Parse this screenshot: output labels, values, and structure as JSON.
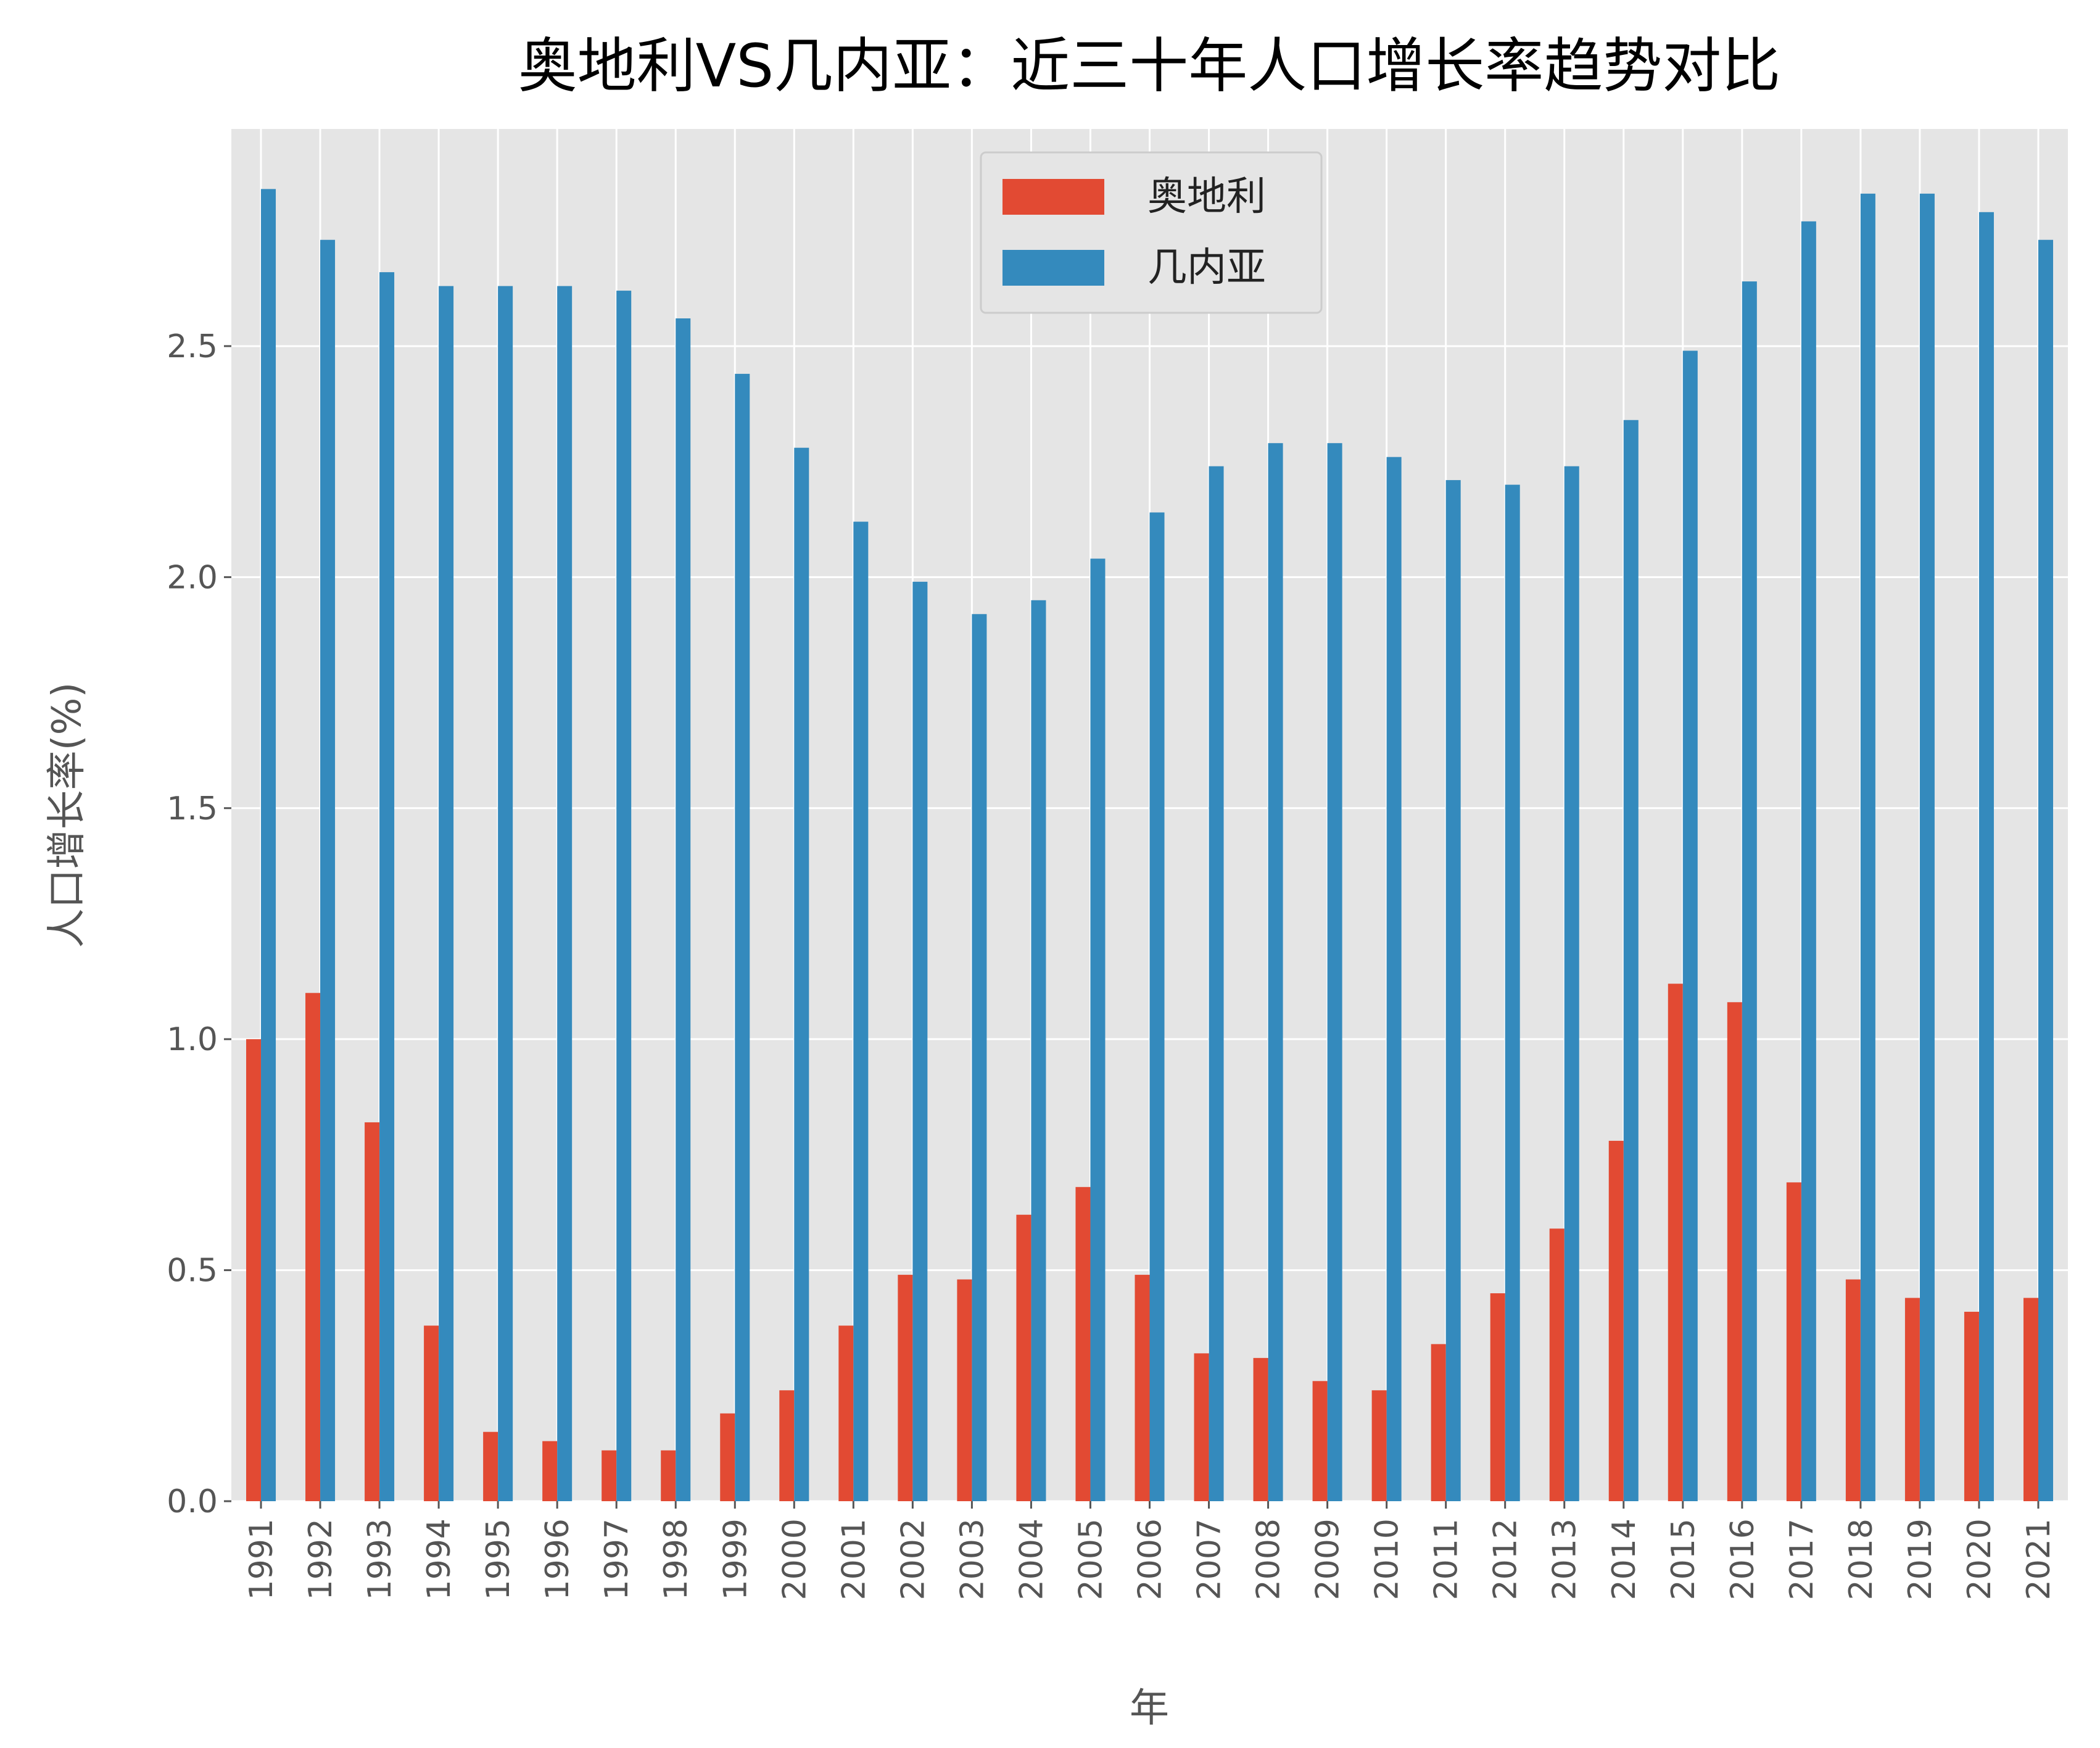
{
  "chart_data": {
    "type": "bar",
    "title": "奥地利VS几内亚：近三十年人口增长率趋势对比",
    "xlabel": "年",
    "ylabel": "人口增长率(%)",
    "ylim": [
      0,
      2.97
    ],
    "yticks": [
      0.0,
      0.5,
      1.0,
      1.5,
      2.0,
      2.5
    ],
    "ytick_labels": [
      "0.0",
      "0.5",
      "1.0",
      "1.5",
      "2.0",
      "2.5"
    ],
    "grid": true,
    "legend_position": "top-center",
    "categories": [
      "1991",
      "1992",
      "1993",
      "1994",
      "1995",
      "1996",
      "1997",
      "1998",
      "1999",
      "2000",
      "2001",
      "2002",
      "2003",
      "2004",
      "2005",
      "2006",
      "2007",
      "2008",
      "2009",
      "2010",
      "2011",
      "2012",
      "2013",
      "2014",
      "2015",
      "2016",
      "2017",
      "2018",
      "2019",
      "2020",
      "2021"
    ],
    "series": [
      {
        "name": "奥地利",
        "color": "#E24A33",
        "values": [
          1.0,
          1.1,
          0.82,
          0.38,
          0.15,
          0.13,
          0.11,
          0.11,
          0.19,
          0.24,
          0.38,
          0.49,
          0.48,
          0.62,
          0.68,
          0.49,
          0.32,
          0.31,
          0.26,
          0.24,
          0.34,
          0.45,
          0.59,
          0.78,
          1.12,
          1.08,
          0.69,
          0.48,
          0.44,
          0.41,
          0.44
        ]
      },
      {
        "name": "几内亚",
        "color": "#348ABD",
        "values": [
          2.84,
          2.73,
          2.66,
          2.63,
          2.63,
          2.63,
          2.62,
          2.56,
          2.44,
          2.28,
          2.12,
          1.99,
          1.92,
          1.95,
          2.04,
          2.14,
          2.24,
          2.29,
          2.29,
          2.26,
          2.21,
          2.2,
          2.24,
          2.34,
          2.49,
          2.64,
          2.77,
          2.83,
          2.83,
          2.79,
          2.73
        ]
      }
    ]
  }
}
